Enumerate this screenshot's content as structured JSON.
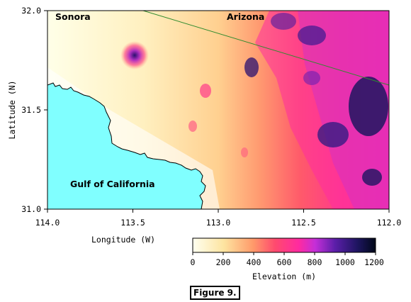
{
  "map": {
    "place_labels": {
      "sonora": "Sonora",
      "arizona": "Arizona",
      "gulf": "Gulf of California"
    },
    "x_axis": {
      "title": "Longitude (W)",
      "ticks": [
        "114.0",
        "113.5",
        "113.0",
        "112.5",
        "112.0"
      ]
    },
    "y_axis": {
      "title": "Latitude (N)",
      "ticks": [
        "32.0",
        "31.5",
        "31.0"
      ]
    },
    "colors": {
      "ocean": "#80ffff",
      "border_line": "#2e8b2e",
      "elevation_scale": [
        "#fffff0",
        "#fde4a0",
        "#ff9a6a",
        "#ff4a6e",
        "#ff2aa0",
        "#b52fd8",
        "#5a1ea8",
        "#1e1560",
        "#000818"
      ]
    }
  },
  "colorbar": {
    "title": "Elevation (m)",
    "ticks": [
      "0",
      "200",
      "400",
      "600",
      "800",
      "1000",
      "1200"
    ]
  },
  "caption": "Figure 9."
}
